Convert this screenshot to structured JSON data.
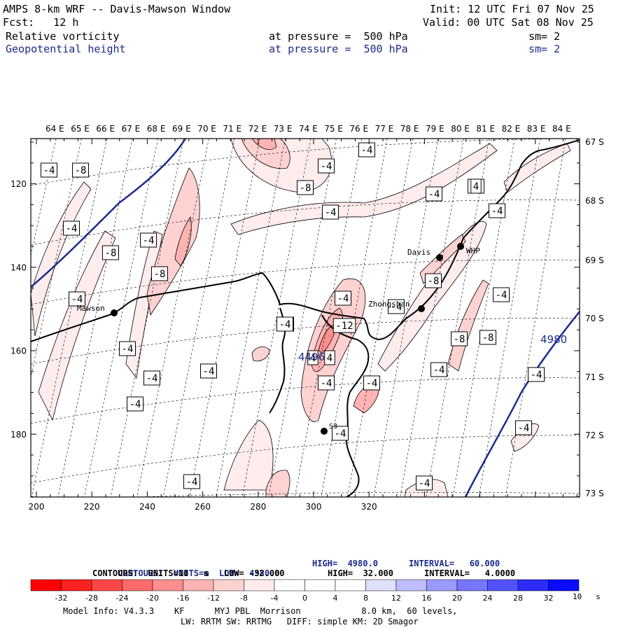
{
  "header": {
    "model_title": "AMPS 8-km WRF -- Davis-Mawson Window",
    "init": "Init: 12 UTC Fri 07 Nov 25",
    "forecast": "Fcst:   12 h",
    "valid": "Valid: 00 UTC Sat 08 Nov 25",
    "field1": {
      "name": "Relative vorticity",
      "level": "at pressure =  500 hPa",
      "smooth": "sm= 2"
    },
    "field2": {
      "name": "Geopotential height",
      "level": "at pressure =  500 hPa",
      "smooth": "sm= 2"
    }
  },
  "map": {
    "lon_labels": [
      "64 E",
      "65 E",
      "66 E",
      "67 E",
      "68 E",
      "69 E",
      "70 E",
      "71 E",
      "72 E",
      "73 E",
      "74 E",
      "75 E",
      "76 E",
      "77 E",
      "78 E",
      "79 E",
      "80 E",
      "81 E",
      "82 E",
      "83 E",
      "84 E"
    ],
    "lat_labels": [
      "67 S",
      "68 S",
      "69 S",
      "70 S",
      "71 S",
      "72 S",
      "73 S"
    ],
    "x_ticks": [
      "200",
      "220",
      "240",
      "260",
      "280",
      "300",
      "320"
    ],
    "y_ticks": [
      "120",
      "140",
      "160",
      "180"
    ],
    "stations": [
      {
        "name": "Mawson",
        "key": "mawson"
      },
      {
        "name": "Davis",
        "key": "davis"
      },
      {
        "name": "WHP",
        "key": "whp"
      },
      {
        "name": "Zhongshan",
        "key": "zhongshan"
      },
      {
        "name": "S3",
        "key": "s3"
      }
    ],
    "contour_labels": [
      "-4",
      "-8",
      "-4",
      "-8",
      "-4",
      "-8",
      "-4",
      "-4",
      "-4",
      "-4",
      "-8",
      "-4",
      "-4",
      "-4",
      "-4",
      "-4",
      "-4",
      "-8",
      "-4",
      "-12",
      "-8",
      "-4",
      "-4",
      "-4",
      "-4",
      "-4",
      "-4",
      "-8",
      "-4",
      "-4",
      "-4",
      "-4",
      "-4",
      "-4",
      "4",
      "4",
      "-4",
      "-4",
      "4"
    ],
    "height_labels": [
      "4980",
      "4496"
    ]
  },
  "footer": {
    "contours1": {
      "label": "CONTOURS:  UNITS=m  LOW=  4980.0",
      "high": "HIGH=  4980.0",
      "interval": "INTERVAL=   60.000"
    },
    "contours2": {
      "label": "CONTOURS:  UNITS=10   s   LOW= -32.000",
      "high": "HIGH=  32.000",
      "interval": "INTERVAL=   4.0000"
    },
    "colorbar_labels": [
      "-32",
      "-28",
      "-24",
      "-20",
      "-16",
      "-12",
      "-8",
      "-4",
      "0",
      "4",
      "8",
      "12",
      "16",
      "20",
      "24",
      "28",
      "32"
    ],
    "colorbar_units": "10   s",
    "colorbar_colors": [
      "#ff0000",
      "#ff2020",
      "#ff4545",
      "#ff6a6a",
      "#ff8f8f",
      "#ffb3b3",
      "#ffd2d2",
      "#ffecec",
      "#ffffff",
      "#ffffff",
      "#e0e0ff",
      "#bdbdff",
      "#9a9aff",
      "#7676ff",
      "#5252ff",
      "#2d2dff",
      "#0a0aff"
    ],
    "model_info": "Model Info: V4.3.3    KF      MYJ PBL  Morrison            8.0 km,  60 levels,",
    "model_info2": "LW: RRTM SW: RRTMG   DIFF: simple KM: 2D Smagor"
  }
}
